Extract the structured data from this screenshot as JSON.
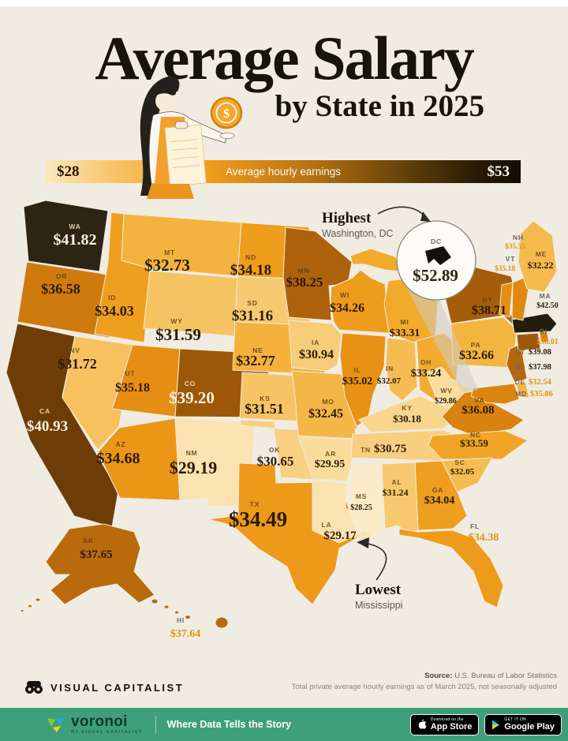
{
  "header": {
    "title": "Average Salary",
    "subtitle": "by State in 2025"
  },
  "legend": {
    "min": "$28",
    "max": "$53",
    "label": "Average hourly earnings"
  },
  "chart_data": {
    "type": "heatmap",
    "subtype": "us-choropleth-map",
    "title": "Average Salary by State in 2025",
    "metric": "Average hourly earnings (USD)",
    "scale": {
      "min": 28,
      "max": 53,
      "min_label": "$28",
      "max_label": "$53"
    },
    "states": [
      {
        "code": "WA",
        "value": 41.82,
        "display": "$41.82",
        "fill": "#2e2413",
        "text": "light"
      },
      {
        "code": "OR",
        "value": 36.58,
        "display": "$36.58",
        "fill": "#ce7a0e",
        "text": "dark"
      },
      {
        "code": "CA",
        "value": 40.93,
        "display": "$40.93",
        "fill": "#6e3d07",
        "text": "light"
      },
      {
        "code": "NV",
        "value": 31.72,
        "display": "$31.72",
        "fill": "#f6c15e",
        "text": "dark"
      },
      {
        "code": "ID",
        "value": 34.03,
        "display": "$34.03",
        "fill": "#ef9f1f",
        "text": "dark"
      },
      {
        "code": "MT",
        "value": 32.73,
        "display": "$32.73",
        "fill": "#f4b33e",
        "text": "dark"
      },
      {
        "code": "WY",
        "value": 31.59,
        "display": "$31.59",
        "fill": "#f6c363",
        "text": "dark"
      },
      {
        "code": "UT",
        "value": 35.18,
        "display": "$35.18",
        "fill": "#e68e13",
        "text": "dark"
      },
      {
        "code": "CO",
        "value": 39.2,
        "display": "$39.20",
        "fill": "#9d5709",
        "text": "light"
      },
      {
        "code": "AZ",
        "value": 34.68,
        "display": "$34.68",
        "fill": "#ec9617",
        "text": "dark"
      },
      {
        "code": "NM",
        "value": 29.19,
        "display": "$29.19",
        "fill": "#fae3b0",
        "text": "dark"
      },
      {
        "code": "ND",
        "value": 34.18,
        "display": "$34.18",
        "fill": "#ee9d1d",
        "text": "dark"
      },
      {
        "code": "SD",
        "value": 31.16,
        "display": "$31.16",
        "fill": "#f7c971",
        "text": "dark"
      },
      {
        "code": "NE",
        "value": 32.77,
        "display": "$32.77",
        "fill": "#f4b23d",
        "text": "dark"
      },
      {
        "code": "KS",
        "value": 31.51,
        "display": "$31.51",
        "fill": "#f6c466",
        "text": "dark"
      },
      {
        "code": "OK",
        "value": 30.65,
        "display": "$30.65",
        "fill": "#f8d083",
        "text": "dark"
      },
      {
        "code": "TX",
        "value": 34.49,
        "display": "$34.49",
        "fill": "#ed9919",
        "text": "dark"
      },
      {
        "code": "MN",
        "value": 38.25,
        "display": "$38.25",
        "fill": "#ae620b",
        "text": "dark"
      },
      {
        "code": "IA",
        "value": 30.94,
        "display": "$30.94",
        "fill": "#f7cc79",
        "text": "dark"
      },
      {
        "code": "MO",
        "value": 32.45,
        "display": "$32.45",
        "fill": "#f4b747",
        "text": "dark"
      },
      {
        "code": "AR",
        "value": 29.95,
        "display": "$29.95",
        "fill": "#f9db9b",
        "text": "dark"
      },
      {
        "code": "LA",
        "value": 29.17,
        "display": "$29.17",
        "fill": "#fae3b0",
        "text": "dark"
      },
      {
        "code": "WI",
        "value": 34.26,
        "display": "$34.26",
        "fill": "#ee9c1c",
        "text": "dark"
      },
      {
        "code": "IL",
        "value": 35.02,
        "display": "$35.02",
        "fill": "#e89114",
        "text": "dark"
      },
      {
        "code": "IN",
        "value": 32.07,
        "display": "$32.07",
        "fill": "#f5bc52",
        "text": "dark"
      },
      {
        "code": "MI",
        "value": 33.31,
        "display": "$33.31",
        "fill": "#f2aa2d",
        "text": "dark"
      },
      {
        "code": "OH",
        "value": 33.24,
        "display": "$33.24",
        "fill": "#f3ab2f",
        "text": "dark"
      },
      {
        "code": "KY",
        "value": 30.18,
        "display": "$30.18",
        "fill": "#f8d68e",
        "text": "dark"
      },
      {
        "code": "TN",
        "value": 30.75,
        "display": "$30.75",
        "fill": "#f8cf80",
        "text": "dark"
      },
      {
        "code": "WV",
        "value": 29.86,
        "display": "$29.86",
        "fill": "#f9dc9e",
        "text": "dark"
      },
      {
        "code": "VA",
        "value": 36.08,
        "display": "$36.08",
        "fill": "#d8820f",
        "text": "dark"
      },
      {
        "code": "NC",
        "value": 33.59,
        "display": "$33.59",
        "fill": "#f1a527",
        "text": "dark"
      },
      {
        "code": "SC",
        "value": 32.05,
        "display": "$32.05",
        "fill": "#f5bc52",
        "text": "dark"
      },
      {
        "code": "GA",
        "value": 34.04,
        "display": "$34.04",
        "fill": "#ef9f1f",
        "text": "dark"
      },
      {
        "code": "AL",
        "value": 31.24,
        "display": "$31.24",
        "fill": "#f7c86e",
        "text": "dark"
      },
      {
        "code": "MS",
        "value": 28.25,
        "display": "$28.25",
        "fill": "#fbebc8",
        "text": "dark"
      },
      {
        "code": "FL",
        "value": 34.38,
        "display": "$34.38",
        "fill": "#ee9a1a",
        "text": "orange"
      },
      {
        "code": "PA",
        "value": 32.66,
        "display": "$32.66",
        "fill": "#f4b440",
        "text": "dark"
      },
      {
        "code": "NY",
        "value": 38.71,
        "display": "$38.71",
        "fill": "#a65d0a",
        "text": "dark"
      },
      {
        "code": "NJ",
        "value": 37.98,
        "display": "$37.98",
        "fill": "#b4660b",
        "text": "gray"
      },
      {
        "code": "DE",
        "value": 32.54,
        "display": "$32.54",
        "fill": "#f4b644",
        "text": "orange"
      },
      {
        "code": "MD",
        "value": 35.86,
        "display": "$35.86",
        "fill": "#db8511",
        "text": "orange"
      },
      {
        "code": "CT",
        "value": 39.08,
        "display": "$39.08",
        "fill": "#9f5809",
        "text": "gray"
      },
      {
        "code": "RI",
        "value": 36.01,
        "display": "$36.01",
        "fill": "#d98310",
        "text": "orange"
      },
      {
        "code": "MA",
        "value": 42.5,
        "display": "$42.50",
        "fill": "#241d0e",
        "text": "gray"
      },
      {
        "code": "VT",
        "value": 35.18,
        "display": "$35.18",
        "fill": "#e68e13",
        "text": "orange"
      },
      {
        "code": "NH",
        "value": 35.55,
        "display": "$35.55",
        "fill": "#e08912",
        "text": "orange"
      },
      {
        "code": "ME",
        "value": 32.22,
        "display": "$32.22",
        "fill": "#f5ba4e",
        "text": "dark"
      },
      {
        "code": "AK",
        "value": 37.65,
        "display": "$37.65",
        "fill": "#b96a0c",
        "text": "dark"
      },
      {
        "code": "HI",
        "value": 37.64,
        "display": "$37.64",
        "fill": "#b96a0c",
        "text": "orange"
      },
      {
        "code": "DC",
        "value": 52.89,
        "display": "$52.89",
        "fill": "#15110a",
        "text": "gray"
      }
    ],
    "annotations": {
      "highest": {
        "label": "Highest",
        "sublabel": "Washington, DC",
        "state": "DC",
        "value": "$52.89"
      },
      "lowest": {
        "label": "Lowest",
        "sublabel": "Mississippi",
        "state": "MS",
        "value": "$28.25"
      }
    }
  },
  "footer": {
    "brand": "VISUAL CAPITALIST",
    "source_label": "Source:",
    "source": " U.S. Bureau of Labor Statistics",
    "note": "Total private average hourly earnings as of March 2025, not seasonally adjusted"
  },
  "bottombar": {
    "brand": "voronoi",
    "brand_sub": "BY VISUAL CAPITALIST",
    "tagline": "Where Data Tells the Story",
    "appstore_small": "Download on the",
    "appstore": "App Store",
    "gplay_small": "GET IT ON",
    "gplay": "Google Play"
  }
}
